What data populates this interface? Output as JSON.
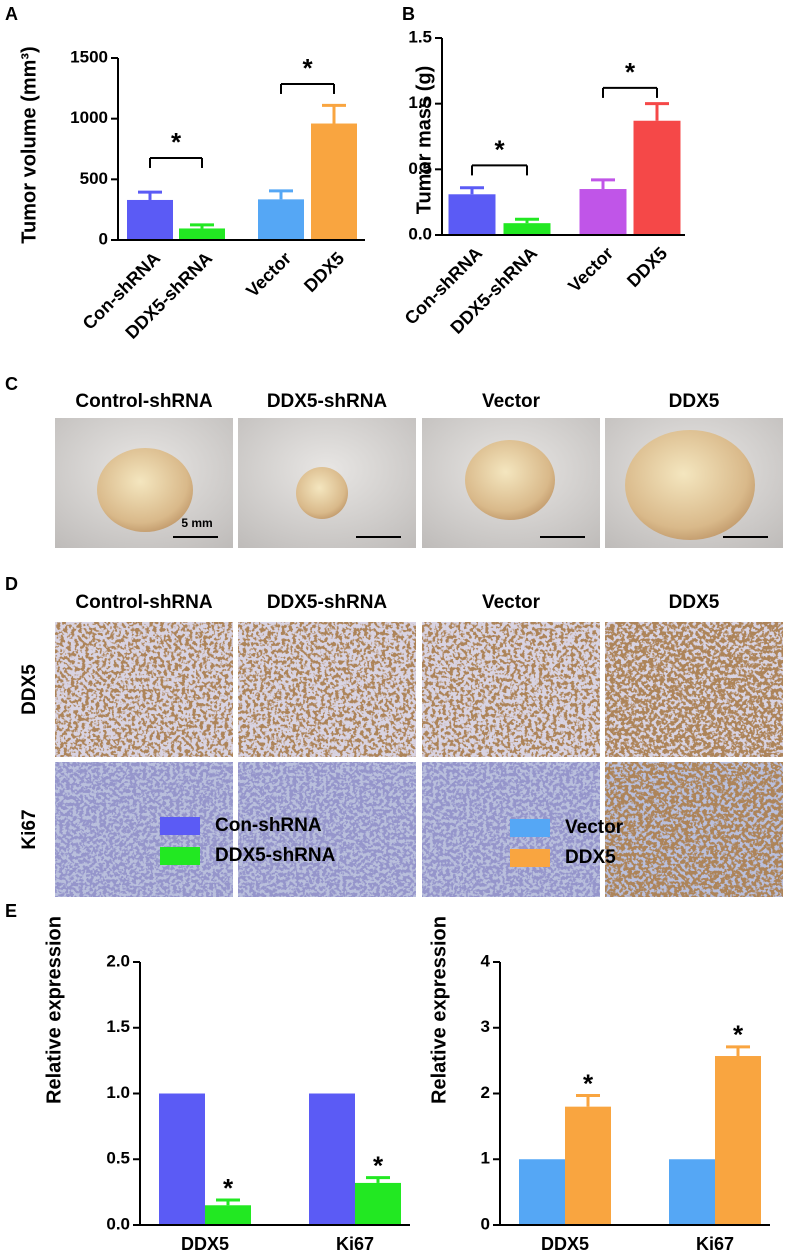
{
  "panel_labels": [
    "A",
    "B",
    "C",
    "D",
    "E"
  ],
  "chart_data": [
    {
      "type": "bar",
      "y_label": "Tumor volume (mm³)",
      "categories": [
        "Con-shRNA",
        "DDX5-shRNA",
        "Vector",
        "DDX5"
      ],
      "values": [
        330,
        95,
        335,
        960
      ],
      "errors": [
        65,
        30,
        70,
        150
      ],
      "colors": [
        "#5b5bf5",
        "#22e822",
        "#55a7f5",
        "#f9a540"
      ],
      "ylim": [
        0,
        1500
      ],
      "yticks": [
        0,
        500,
        1000,
        1500
      ],
      "significance": [
        {
          "from": "Con-shRNA",
          "to": "DDX5-shRNA",
          "label": "*",
          "y": 676
        },
        {
          "from": "Vector",
          "to": "DDX5",
          "label": "*",
          "y": 1286
        }
      ]
    },
    {
      "type": "bar",
      "y_label": "Tumor mass (g)",
      "categories": [
        "Con-shRNA",
        "DDX5-shRNA",
        "Vector",
        "DDX5"
      ],
      "values": [
        0.31,
        0.09,
        0.35,
        0.87
      ],
      "errors": [
        0.05,
        0.03,
        0.07,
        0.13
      ],
      "colors": [
        "#5b5bf5",
        "#22e822",
        "#c055e8",
        "#f54848"
      ],
      "ylim": [
        0,
        1.5
      ],
      "yticks": [
        {
          "value": 0,
          "label": "0.0"
        },
        {
          "value": 0.5,
          "label": "0.5"
        },
        {
          "value": 1,
          "label": "1.0"
        },
        {
          "value": 1.5,
          "label": "1.5"
        }
      ],
      "significance": [
        {
          "from": "Con-shRNA",
          "to": "DDX5-shRNA",
          "label": "*",
          "y": 0.53
        },
        {
          "from": "Vector",
          "to": "DDX5",
          "label": "*",
          "y": 1.12
        }
      ]
    },
    {
      "type": "grouped_bar",
      "y_label": "Relative expression",
      "categories": [
        "DDX5",
        "Ki67"
      ],
      "series": [
        {
          "name": "Con-shRNA",
          "color": "#5b5bf5",
          "values": [
            1,
            1
          ]
        },
        {
          "name": "DDX5-shRNA",
          "color": "#22e822",
          "values": [
            0.15,
            0.32
          ],
          "errors": [
            0.04,
            0.04
          ],
          "markers": [
            "*",
            "*"
          ]
        }
      ],
      "ylim": [
        0,
        2
      ],
      "yticks": [
        {
          "value": 0,
          "label": "0.0"
        },
        {
          "value": 0.5,
          "label": "0.5"
        },
        {
          "value": 1,
          "label": "1.0"
        },
        {
          "value": 1.5,
          "label": "1.5"
        },
        {
          "value": 2,
          "label": "2.0"
        }
      ],
      "legend": "upper-left"
    },
    {
      "type": "grouped_bar",
      "y_label": "Relative expression",
      "categories": [
        "DDX5",
        "Ki67"
      ],
      "series": [
        {
          "name": "Vector",
          "color": "#55a7f5",
          "values": [
            1,
            1
          ]
        },
        {
          "name": "DDX5",
          "color": "#f9a540",
          "values": [
            1.8,
            2.57
          ],
          "errors": [
            0.17,
            0.14
          ],
          "markers": [
            "*",
            "*"
          ]
        }
      ],
      "ylim": [
        0,
        4
      ],
      "yticks": [
        0,
        1,
        2,
        3,
        4
      ],
      "legend": "upper-left"
    }
  ],
  "photos": {
    "columns": [
      "Control-shRNA",
      "DDX5-shRNA",
      "Vector",
      "DDX5"
    ],
    "scale_bar": "5 mm"
  },
  "ihc": {
    "columns": [
      "Control-shRNA",
      "DDX5-shRNA",
      "Vector",
      "DDX5"
    ],
    "rows": [
      "DDX5",
      "Ki67"
    ]
  }
}
